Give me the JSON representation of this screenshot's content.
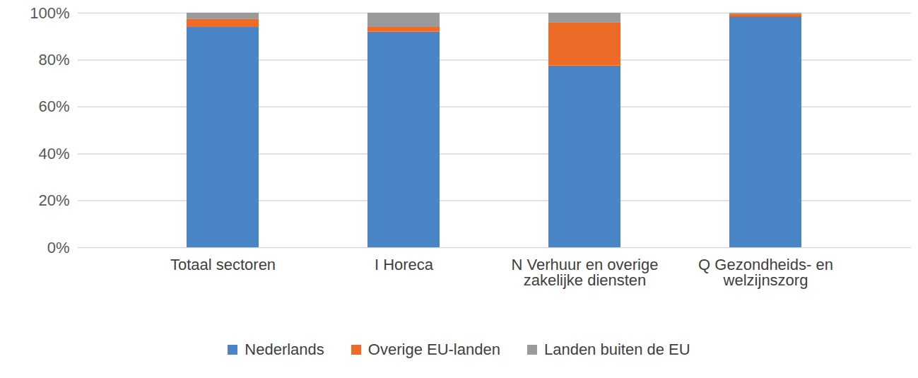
{
  "chart_data": {
    "type": "bar",
    "stacked": true,
    "grid": true,
    "legend": "bottom",
    "categories": [
      "Totaal sectoren",
      "I Horeca",
      "N Verhuur en overige zakelijke diensten",
      "Q Gezondheids- en welzijnszorg"
    ],
    "series": [
      {
        "name": "Nederlands",
        "color": "#4a86c7",
        "values": [
          94,
          92,
          77.5,
          98.5
        ]
      },
      {
        "name": "Overige EU-landen",
        "color": "#ed6b26",
        "values": [
          3.5,
          2,
          18.5,
          1
        ]
      },
      {
        "name": "Landen buiten de EU",
        "color": "#9a9a9a",
        "values": [
          2.5,
          6,
          4,
          0.5
        ]
      }
    ],
    "ylim": [
      0,
      100
    ],
    "yticks": [
      {
        "value": 0,
        "label": "0%"
      },
      {
        "value": 20,
        "label": "20%"
      },
      {
        "value": 40,
        "label": "40%"
      },
      {
        "value": 60,
        "label": "60%"
      },
      {
        "value": 80,
        "label": "80%"
      },
      {
        "value": 100,
        "label": "100%"
      }
    ]
  }
}
